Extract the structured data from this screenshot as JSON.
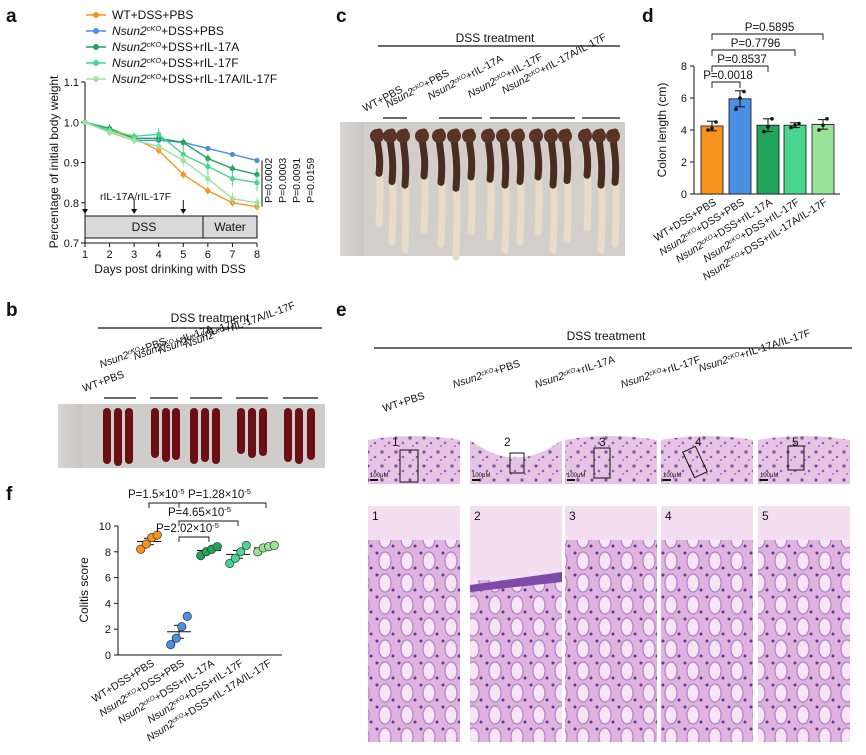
{
  "panel_labels": {
    "a": "a",
    "b": "b",
    "c": "c",
    "d": "d",
    "e": "e",
    "f": "f"
  },
  "colors": {
    "wt": "#f7931e",
    "pbs": "#4a90e2",
    "il17a": "#22a55a",
    "il17f": "#49d58e",
    "il17af": "#9be39b"
  },
  "legend_a": [
    {
      "prefix": "WT",
      "sup": "",
      "suffix": "+DSS+PBS",
      "color_key": "wt"
    },
    {
      "prefix": "Nsun2",
      "sup": "cKO",
      "suffix": "+DSS+PBS",
      "color_key": "pbs"
    },
    {
      "prefix": "Nsun2",
      "sup": "cKO",
      "suffix": "+DSS+rIL-17A",
      "color_key": "il17a"
    },
    {
      "prefix": "Nsun2",
      "sup": "cKO",
      "suffix": "+DSS+rIL-17F",
      "color_key": "il17f"
    },
    {
      "prefix": "Nsun2",
      "sup": "cKO",
      "suffix": "+DSS+rIL-17A/IL-17F",
      "color_key": "il17af"
    }
  ],
  "group_labels_short": [
    {
      "prefix": "WT",
      "sup": "",
      "suffix": "+PBS"
    },
    {
      "prefix": "Nsun2",
      "sup": "cKO",
      "suffix": "+PBS"
    },
    {
      "prefix": "Nsun2",
      "sup": "cKO",
      "suffix": "+rIL-17A"
    },
    {
      "prefix": "Nsun2",
      "sup": "cKO",
      "suffix": "+rIL-17F"
    },
    {
      "prefix": "Nsun2",
      "sup": "cKO",
      "suffix": "+rIL-17A/IL-17F"
    }
  ],
  "group_labels_long": [
    {
      "prefix": "WT",
      "sup": "",
      "suffix": "+DSS+PBS"
    },
    {
      "prefix": "Nsun2",
      "sup": "cKO",
      "suffix": "+DSS+PBS"
    },
    {
      "prefix": "Nsun2",
      "sup": "cKO",
      "suffix": "+DSS+rIL-17A"
    },
    {
      "prefix": "Nsun2",
      "sup": "cKO",
      "suffix": "+DSS+rIL-17F"
    },
    {
      "prefix": "Nsun2",
      "sup": "cKO",
      "suffix": "+DSS+rIL-17A/IL-17F"
    }
  ],
  "panel_a": {
    "xlabel": "Days post drinking with DSS",
    "ylabel": "Percentage of initial body weight",
    "injection_label": "rIL-17A/rIL-17F",
    "dss_label": "DSS",
    "water_label": "Water",
    "pvalues": [
      "P=0.0002",
      "P=0.0003",
      "P=0.0091",
      "P=0.0159"
    ]
  },
  "panel_b": {
    "treatment": "DSS treatment"
  },
  "panel_c": {
    "treatment": "DSS treatment"
  },
  "panel_d": {
    "ylabel": "Colon length (cm)",
    "pvalues": [
      "P=0.0018",
      "P=0.8537",
      "P=0.7796",
      "P=0.5895"
    ]
  },
  "panel_e": {
    "treatment": "DSS treatment",
    "scale_label": "100μM",
    "tile_numbers": [
      "1",
      "2",
      "3",
      "4",
      "5"
    ]
  },
  "panel_f": {
    "ylabel": "Colitis score",
    "pvalues": [
      "P=1.5×10",
      "P=1.28×10",
      "P=4.65×10",
      "P=2.02×10"
    ],
    "pvalue_exp": "-5"
  },
  "chart_data": [
    {
      "type": "line",
      "panel": "a",
      "xlabel": "Days post drinking with DSS",
      "ylabel": "Percentage of initial body weight",
      "x": [
        1,
        2,
        3,
        4,
        5,
        6,
        7,
        8
      ],
      "ylim": [
        0.7,
        1.1
      ],
      "yticks": [
        0.7,
        0.8,
        0.9,
        1.0,
        1.1
      ],
      "series": [
        {
          "name": "WT+DSS+PBS",
          "values": [
            1.0,
            0.98,
            0.96,
            0.93,
            0.87,
            0.83,
            0.8,
            0.79
          ],
          "errors": [
            0.005,
            0.01,
            0.01,
            0.01,
            0.01,
            0.01,
            0.01,
            0.01
          ]
        },
        {
          "name": "Nsun2cKO+DSS+PBS",
          "values": [
            1.0,
            0.975,
            0.955,
            0.955,
            0.95,
            0.935,
            0.92,
            0.905
          ],
          "errors": [
            0.005,
            0.005,
            0.005,
            0.005,
            0.005,
            0.005,
            0.005,
            0.005
          ]
        },
        {
          "name": "Nsun2cKO+DSS+rIL-17A",
          "values": [
            1.0,
            0.985,
            0.96,
            0.96,
            0.95,
            0.91,
            0.885,
            0.87
          ],
          "errors": [
            0.005,
            0.01,
            0.01,
            0.01,
            0.01,
            0.01,
            0.01,
            0.015
          ]
        },
        {
          "name": "Nsun2cKO+DSS+rIL-17F",
          "values": [
            1.0,
            0.98,
            0.965,
            0.97,
            0.92,
            0.89,
            0.86,
            0.85
          ],
          "errors": [
            0.005,
            0.01,
            0.01,
            0.015,
            0.02,
            0.02,
            0.02,
            0.02
          ]
        },
        {
          "name": "Nsun2cKO+DSS+rIL-17A/IL-17F",
          "values": [
            1.0,
            0.975,
            0.955,
            0.94,
            0.905,
            0.86,
            0.81,
            0.8
          ],
          "errors": [
            0.005,
            0.01,
            0.01,
            0.01,
            0.015,
            0.015,
            0.015,
            0.015
          ]
        }
      ]
    },
    {
      "type": "bar",
      "panel": "d",
      "ylabel": "Colon length (cm)",
      "categories": [
        "WT+DSS+PBS",
        "Nsun2cKO+DSS+PBS",
        "Nsun2cKO+DSS+rIL-17A",
        "Nsun2cKO+DSS+rIL-17F",
        "Nsun2cKO+DSS+rIL-17A/IL-17F"
      ],
      "values": [
        4.25,
        5.95,
        4.3,
        4.3,
        4.35
      ],
      "errors": [
        0.3,
        0.5,
        0.4,
        0.15,
        0.3
      ],
      "points": [
        [
          4.0,
          4.1,
          4.5
        ],
        [
          5.3,
          6.0,
          6.4
        ],
        [
          3.9,
          4.2,
          4.7
        ],
        [
          4.15,
          4.3,
          4.4
        ],
        [
          4.0,
          4.3,
          4.7
        ]
      ],
      "ylim": [
        0,
        8
      ],
      "yticks": [
        0,
        2,
        4,
        6,
        8
      ]
    },
    {
      "type": "scatter",
      "panel": "f",
      "ylabel": "Colitis score",
      "categories": [
        "WT+DSS+PBS",
        "Nsun2cKO+DSS+PBS",
        "Nsun2cKO+DSS+rIL-17A",
        "Nsun2cKO+DSS+rIL-17F",
        "Nsun2cKO+DSS+rIL-17A/IL-17F"
      ],
      "points": [
        [
          8.2,
          8.6,
          9.1,
          9.3
        ],
        [
          0.8,
          1.3,
          2.2,
          3.0
        ],
        [
          7.7,
          8.0,
          8.2,
          8.4
        ],
        [
          7.1,
          7.5,
          8.0,
          8.5
        ],
        [
          8.0,
          8.3,
          8.4,
          8.5
        ]
      ],
      "means": [
        8.8,
        1.8,
        8.1,
        7.8,
        8.3
      ],
      "sems": [
        0.25,
        0.5,
        0.2,
        0.3,
        0.15
      ],
      "ylim": [
        0,
        10
      ],
      "yticks": [
        0,
        2,
        4,
        6,
        8,
        10
      ]
    }
  ]
}
